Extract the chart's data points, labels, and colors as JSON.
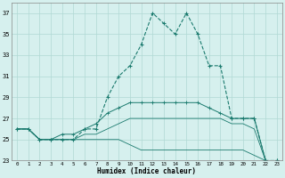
{
  "xlabel": "Humidex (Indice chaleur)",
  "x": [
    0,
    1,
    2,
    3,
    4,
    5,
    6,
    7,
    8,
    9,
    10,
    11,
    12,
    13,
    14,
    15,
    16,
    17,
    18,
    19,
    20,
    21,
    22,
    23
  ],
  "line1": [
    26,
    26,
    25,
    25,
    25,
    25,
    26,
    26,
    29,
    31,
    32,
    34,
    37,
    36,
    35,
    37,
    35,
    32,
    32,
    27,
    27,
    27,
    23,
    23
  ],
  "line2": [
    26,
    26,
    25,
    25,
    25.5,
    25.5,
    26,
    26.5,
    27.5,
    28,
    28.5,
    28.5,
    28.5,
    28.5,
    28.5,
    28.5,
    28.5,
    28,
    27.5,
    27,
    27,
    27,
    23,
    23
  ],
  "line3": [
    26,
    26,
    25,
    25,
    25,
    25,
    25.5,
    25.5,
    26,
    26.5,
    27,
    27,
    27,
    27,
    27,
    27,
    27,
    27,
    27,
    26.5,
    26.5,
    26,
    23,
    23
  ],
  "line4": [
    26,
    26,
    25,
    25,
    25,
    25,
    25,
    25,
    25,
    25,
    24.5,
    24,
    24,
    24,
    24,
    24,
    24,
    24,
    24,
    24,
    24,
    23.5,
    23,
    23
  ],
  "color": "#1a7a6e",
  "bg_color": "#d6f0ee",
  "grid_color": "#b0d8d4",
  "ylim": [
    23,
    38
  ],
  "yticks": [
    23,
    25,
    27,
    29,
    31,
    33,
    35,
    37
  ],
  "xticks": [
    0,
    1,
    2,
    3,
    4,
    5,
    6,
    7,
    8,
    9,
    10,
    11,
    12,
    13,
    14,
    15,
    16,
    17,
    18,
    19,
    20,
    21,
    22,
    23
  ],
  "xlim": [
    -0.5,
    23.5
  ]
}
